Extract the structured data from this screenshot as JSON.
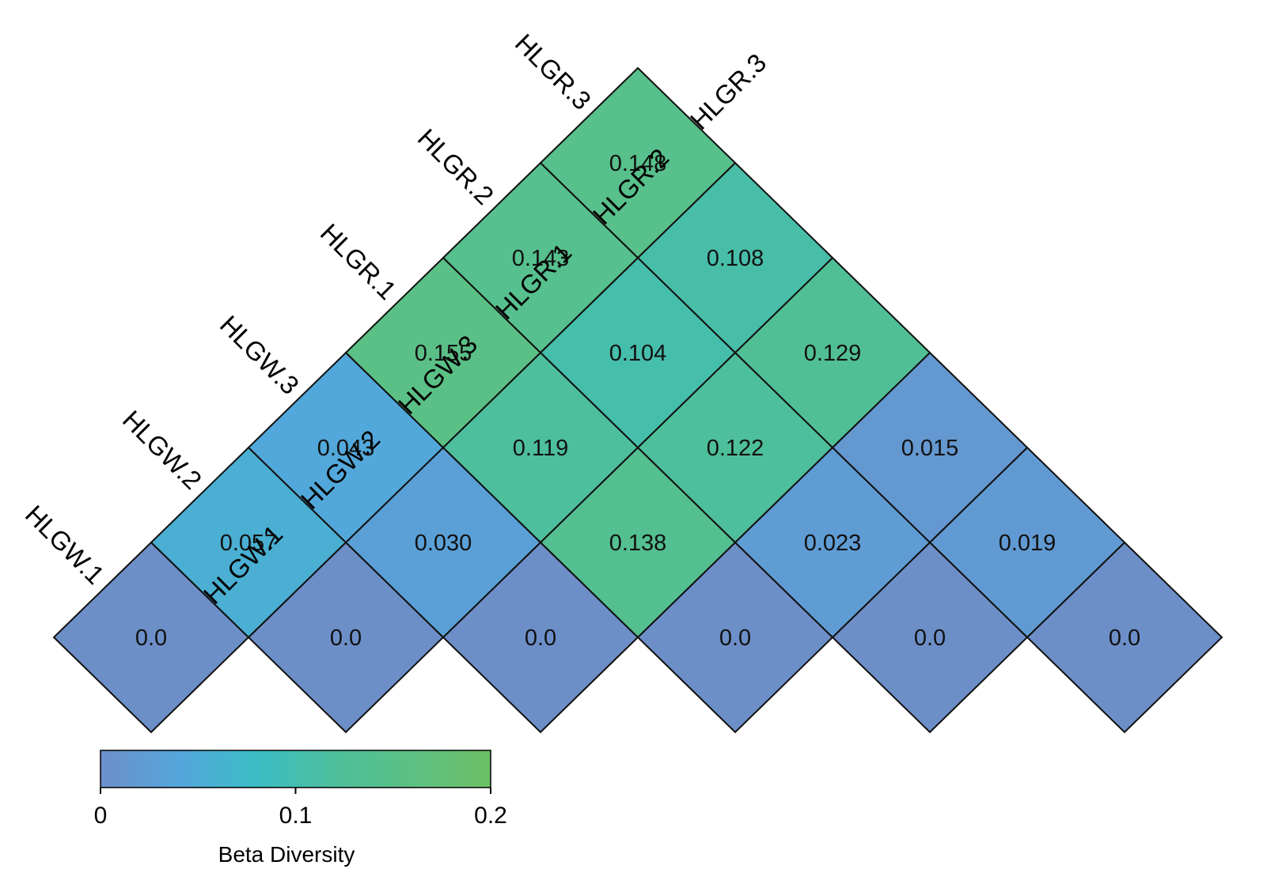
{
  "chart_data": {
    "type": "heatmap",
    "layout": "triangular",
    "samples": [
      "HLGW.1",
      "HLGW.2",
      "HLGW.3",
      "HLGR.1",
      "HLGR.2",
      "HLGR.3"
    ],
    "cells": [
      {
        "a": 0,
        "b": 0,
        "value": 0.0,
        "label": "0.0"
      },
      {
        "a": 1,
        "b": 1,
        "value": 0.0,
        "label": "0.0"
      },
      {
        "a": 2,
        "b": 2,
        "value": 0.0,
        "label": "0.0"
      },
      {
        "a": 3,
        "b": 3,
        "value": 0.0,
        "label": "0.0"
      },
      {
        "a": 4,
        "b": 4,
        "value": 0.0,
        "label": "0.0"
      },
      {
        "a": 5,
        "b": 5,
        "value": 0.0,
        "label": "0.0"
      },
      {
        "a": 0,
        "b": 1,
        "value": 0.057,
        "label": "0.057"
      },
      {
        "a": 1,
        "b": 2,
        "value": 0.03,
        "label": "0.030"
      },
      {
        "a": 2,
        "b": 3,
        "value": 0.138,
        "label": "0.138"
      },
      {
        "a": 3,
        "b": 4,
        "value": 0.023,
        "label": "0.023"
      },
      {
        "a": 4,
        "b": 5,
        "value": 0.019,
        "label": "0.019"
      },
      {
        "a": 0,
        "b": 2,
        "value": 0.043,
        "label": "0.043"
      },
      {
        "a": 1,
        "b": 3,
        "value": 0.119,
        "label": "0.119"
      },
      {
        "a": 2,
        "b": 4,
        "value": 0.122,
        "label": "0.122"
      },
      {
        "a": 3,
        "b": 5,
        "value": 0.015,
        "label": "0.015"
      },
      {
        "a": 0,
        "b": 3,
        "value": 0.155,
        "label": "0.155"
      },
      {
        "a": 1,
        "b": 4,
        "value": 0.104,
        "label": "0.104"
      },
      {
        "a": 2,
        "b": 5,
        "value": 0.129,
        "label": "0.129"
      },
      {
        "a": 0,
        "b": 4,
        "value": 0.143,
        "label": "0.143"
      },
      {
        "a": 1,
        "b": 5,
        "value": 0.108,
        "label": "0.108"
      },
      {
        "a": 0,
        "b": 5,
        "value": 0.148,
        "label": "0.148"
      }
    ],
    "colorbar": {
      "title": "Beta Diversity",
      "range": [
        0,
        0.2
      ],
      "ticks": [
        0,
        0.1,
        0.2
      ],
      "tick_labels": [
        "0",
        "0.1",
        "0.2"
      ],
      "colors": [
        "#6d8fc8",
        "#54a6dc",
        "#3cbcc4",
        "#4dbf9c",
        "#5dc083",
        "#6cbf64"
      ],
      "placement": "bottom-left"
    },
    "cell_border_color": "#111111"
  }
}
